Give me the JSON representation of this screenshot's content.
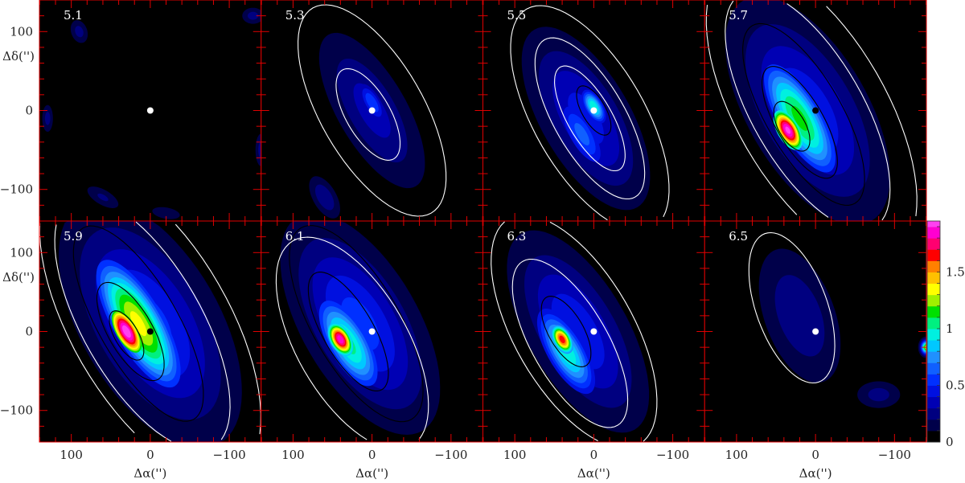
{
  "chart_data": {
    "type": "heatmap",
    "layout": "channel-map grid, 2 rows x 4 columns",
    "xlabel": "Δα('')",
    "ylabel": "Δδ('')",
    "xlim": [
      140,
      -140
    ],
    "ylim": [
      -140,
      140
    ],
    "x_ticks": [
      "100",
      "0",
      "−100"
    ],
    "x_tick_values": [
      100,
      0,
      -100
    ],
    "y_ticks": [
      "100",
      "0",
      "−100"
    ],
    "y_tick_values": [
      100,
      0,
      -100
    ],
    "colorbar": {
      "range": [
        0,
        1.95
      ],
      "ticks": [
        "0",
        "0.5",
        "1",
        "1.5"
      ],
      "tick_values": [
        0,
        0.5,
        1,
        1.5
      ],
      "levels_step": 0.1,
      "colors": [
        "#000000",
        "#00004a",
        "#000080",
        "#0000b4",
        "#0010e0",
        "#0030ff",
        "#1060ff",
        "#2090ff",
        "#00c8ff",
        "#00f0e0",
        "#00f080",
        "#00e000",
        "#a0f000",
        "#ffff00",
        "#ffc000",
        "#ff8000",
        "#ff0000",
        "#ff0070",
        "#ff00d0",
        "#ff40f0",
        "#ff90f0",
        "#ffd8ff"
      ]
    },
    "panels": [
      {
        "label": "5.1",
        "source_dot": "#ffffff",
        "blobs": [
          {
            "x": 90,
            "y": 100,
            "peak": 0.25,
            "a": 22,
            "b": 15,
            "pa": 160
          },
          {
            "x": 60,
            "y": -110,
            "peak": 0.22,
            "a": 35,
            "b": 15,
            "pa": 120
          },
          {
            "x": -20,
            "y": -130,
            "peak": 0.2,
            "a": 30,
            "b": 12,
            "pa": 100
          },
          {
            "x": 130,
            "y": -10,
            "peak": 0.25,
            "a": 25,
            "b": 10,
            "pa": 0
          },
          {
            "x": -140,
            "y": -50,
            "peak": 0.25,
            "a": 30,
            "b": 10,
            "pa": 0
          },
          {
            "x": -130,
            "y": 120,
            "peak": 0.25,
            "a": 20,
            "b": 15,
            "pa": 90
          }
        ],
        "contours": []
      },
      {
        "label": "5.3",
        "source_dot": "#ffffff",
        "blobs": [
          {
            "x": 0,
            "y": 0,
            "peak": 0.35,
            "a": 140,
            "b": 55,
            "pa": 150
          },
          {
            "x": 0,
            "y": 10,
            "peak": 0.6,
            "a": 45,
            "b": 18,
            "pa": 150
          },
          {
            "x": 60,
            "y": -110,
            "peak": 0.3,
            "a": 40,
            "b": 20,
            "pa": 150
          }
        ],
        "contours": [
          {
            "x": 5,
            "y": -5,
            "a": 65,
            "b": 28,
            "pa": 150,
            "color": "#ffffff"
          },
          {
            "x": 0,
            "y": 0,
            "a": 150,
            "b": 65,
            "pa": 150,
            "color": "#ffffff"
          }
        ]
      },
      {
        "label": "5.5",
        "source_dot": "#ffffff",
        "blobs": [
          {
            "x": 10,
            "y": -10,
            "peak": 0.45,
            "a": 150,
            "b": 65,
            "pa": 150
          },
          {
            "x": 15,
            "y": -30,
            "peak": 0.65,
            "a": 80,
            "b": 30,
            "pa": 150
          },
          {
            "x": 0,
            "y": 5,
            "peak": 1.0,
            "a": 35,
            "b": 17,
            "pa": 150
          }
        ],
        "contours": [
          {
            "x": 0,
            "y": 0,
            "a": 35,
            "b": 15,
            "pa": 150,
            "color": "#000000"
          },
          {
            "x": 5,
            "y": -10,
            "a": 75,
            "b": 28,
            "pa": 150,
            "color": "#ffffff"
          },
          {
            "x": 5,
            "y": -10,
            "a": 115,
            "b": 45,
            "pa": 150,
            "color": "#ffffff"
          },
          {
            "x": 5,
            "y": -10,
            "a": 160,
            "b": 70,
            "pa": 150,
            "color": "#ffffff"
          }
        ]
      },
      {
        "label": "5.7",
        "source_dot": "#000000",
        "blobs": [
          {
            "x": 10,
            "y": 0,
            "peak": 0.5,
            "a": 180,
            "b": 85,
            "pa": 150
          },
          {
            "x": 20,
            "y": -10,
            "peak": 1.15,
            "a": 120,
            "b": 42,
            "pa": 150
          },
          {
            "x": 35,
            "y": -25,
            "peak": 1.95,
            "a": 45,
            "b": 22,
            "pa": 150
          }
        ],
        "contours": [
          {
            "x": 30,
            "y": -20,
            "a": 35,
            "b": 17,
            "pa": 150,
            "color": "#000000"
          },
          {
            "x": 20,
            "y": -15,
            "a": 80,
            "b": 30,
            "pa": 150,
            "color": "#000000"
          },
          {
            "x": 15,
            "y": -5,
            "a": 130,
            "b": 48,
            "pa": 150,
            "color": "#000000"
          },
          {
            "x": 10,
            "y": 0,
            "a": 170,
            "b": 70,
            "pa": 150,
            "color": "#ffffff"
          },
          {
            "x": 5,
            "y": 0,
            "a": 210,
            "b": 95,
            "pa": 150,
            "color": "#ffffff"
          }
        ]
      },
      {
        "label": "5.9",
        "source_dot": "#000000",
        "blobs": [
          {
            "x": 0,
            "y": 10,
            "peak": 0.55,
            "a": 190,
            "b": 95,
            "pa": 150
          },
          {
            "x": 15,
            "y": 10,
            "peak": 1.35,
            "a": 130,
            "b": 45,
            "pa": 150
          },
          {
            "x": 30,
            "y": 0,
            "peak": 2.0,
            "a": 55,
            "b": 24,
            "pa": 150
          }
        ],
        "contours": [
          {
            "x": 30,
            "y": -5,
            "a": 35,
            "b": 15,
            "pa": 150,
            "color": "#000000"
          },
          {
            "x": 25,
            "y": 0,
            "a": 70,
            "b": 28,
            "pa": 150,
            "color": "#000000"
          },
          {
            "x": 15,
            "y": 10,
            "a": 140,
            "b": 50,
            "pa": 150,
            "color": "#000000"
          },
          {
            "x": 10,
            "y": 10,
            "a": 180,
            "b": 75,
            "pa": 150,
            "color": "#ffffff"
          },
          {
            "x": 0,
            "y": 10,
            "a": 220,
            "b": 100,
            "pa": 150,
            "color": "#ffffff"
          }
        ]
      },
      {
        "label": "6.1",
        "source_dot": "#ffffff",
        "blobs": [
          {
            "x": 15,
            "y": 10,
            "peak": 0.55,
            "a": 170,
            "b": 80,
            "pa": 150
          },
          {
            "x": 30,
            "y": -15,
            "peak": 1.05,
            "a": 100,
            "b": 40,
            "pa": 150
          },
          {
            "x": 40,
            "y": -10,
            "peak": 1.9,
            "a": 35,
            "b": 20,
            "pa": 150
          }
        ],
        "contours": [
          {
            "x": 30,
            "y": 0,
            "a": 85,
            "b": 32,
            "pa": 150,
            "color": "#000000"
          },
          {
            "x": 20,
            "y": 10,
            "a": 140,
            "b": 55,
            "pa": 150,
            "color": "#000000"
          },
          {
            "x": 25,
            "y": -15,
            "a": 150,
            "b": 70,
            "pa": 150,
            "color": "#ffffff"
          }
        ]
      },
      {
        "label": "6.3",
        "source_dot": "#ffffff",
        "blobs": [
          {
            "x": 20,
            "y": 0,
            "peak": 0.5,
            "a": 160,
            "b": 70,
            "pa": 150
          },
          {
            "x": 35,
            "y": -25,
            "peak": 1.0,
            "a": 90,
            "b": 35,
            "pa": 150
          },
          {
            "x": 40,
            "y": -10,
            "peak": 1.7,
            "a": 30,
            "b": 17,
            "pa": 150
          }
        ],
        "contours": [
          {
            "x": 35,
            "y": 0,
            "a": 50,
            "b": 22,
            "pa": 150,
            "color": "#000000"
          },
          {
            "x": 30,
            "y": -15,
            "a": 120,
            "b": 48,
            "pa": 150,
            "color": "#ffffff"
          },
          {
            "x": 25,
            "y": 0,
            "a": 165,
            "b": 75,
            "pa": 150,
            "color": "#ffffff"
          }
        ]
      },
      {
        "label": "6.5",
        "source_dot": "#ffffff",
        "blobs": [
          {
            "x": 20,
            "y": 20,
            "peak": 0.3,
            "a": 120,
            "b": 60,
            "pa": 160
          },
          {
            "x": -80,
            "y": -80,
            "peak": 0.25,
            "a": 40,
            "b": 25,
            "pa": 90
          },
          {
            "x": -140,
            "y": -20,
            "peak": 1.3,
            "a": 12,
            "b": 9,
            "pa": 0
          }
        ],
        "contours": [
          {
            "x": 30,
            "y": 30,
            "a": 100,
            "b": 45,
            "pa": 160,
            "color": "#ffffff"
          }
        ]
      }
    ]
  }
}
